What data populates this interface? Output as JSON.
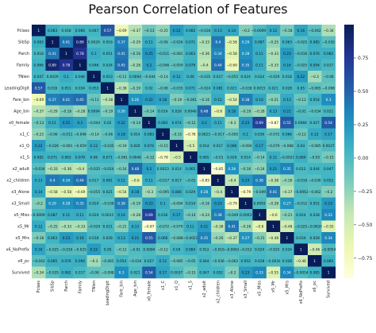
{
  "title": "Pearson Correlation of Features",
  "chart_data": {
    "type": "heatmap",
    "title": "Pearson Correlation of Features",
    "labels": [
      "Pclass",
      "SibSp",
      "Parch",
      "Family",
      "TNlen",
      "LeadingDigit",
      "Fare_bin",
      "Age_bin",
      "x0_female",
      "x1_C",
      "x1_Q",
      "x1_S",
      "x2_adult",
      "x2_children",
      "x3_Alone",
      "x3_Small",
      "x5_Miss",
      "x5_Mr",
      "x5_Mrs",
      "x6_NoPrefix",
      "x6_pc",
      "Survived"
    ],
    "colormap": "YlGnBu",
    "vmin": -0.9,
    "vmax": 1.0,
    "colorbar_ticks": [
      0.75,
      0.5,
      0.25,
      0.0,
      -0.25,
      -0.5,
      -0.75
    ],
    "colorbar_tick_labels": [
      "0.75",
      "0.50",
      "0.25",
      "0.00",
      "−0.25",
      "−0.50",
      "−0.75"
    ],
    "matrix": [
      [
        1,
        0.083,
        0.018,
        0.066,
        0.047,
        0.57,
        -0.69,
        -0.37,
        -0.13,
        -0.25,
        0.22,
        0.082,
        -0.034,
        0.13,
        0.14,
        -0.2,
        -0.00091,
        0.12,
        -0.18,
        0.16,
        -0.042,
        -0.34
      ],
      [
        0.083,
        1,
        0.41,
        0.89,
        0.0029,
        0.016,
        0.37,
        -0.29,
        0.11,
        -0.06,
        -0.026,
        0.071,
        -0.33,
        0.4,
        -0.58,
        0.29,
        0.087,
        -0.25,
        0.063,
        -0.025,
        0.085,
        -0.035
      ],
      [
        0.018,
        0.41,
        1,
        0.78,
        0.1,
        0.051,
        0.41,
        -0.16,
        0.25,
        -0.011,
        -0.081,
        0.063,
        -0.36,
        0.34,
        -0.58,
        0.28,
        0.11,
        -0.33,
        0.23,
        -0.016,
        0.076,
        0.082
      ],
      [
        0.066,
        0.89,
        0.78,
        1,
        0.046,
        0.034,
        0.45,
        -0.28,
        0.2,
        -0.046,
        -0.059,
        0.079,
        -0.4,
        0.44,
        -0.69,
        0.35,
        0.11,
        -0.33,
        0.16,
        -0.025,
        0.094,
        0.017
      ],
      [
        0.047,
        0.0029,
        0.1,
        0.046,
        1,
        0.053,
        -0.11,
        0.0094,
        -0.044,
        -0.14,
        0.12,
        0.06,
        -0.035,
        0.017,
        -0.055,
        0.024,
        0.024,
        -0.029,
        0.018,
        0.22,
        -0.3,
        -0.06
      ],
      [
        0.57,
        0.016,
        0.051,
        0.034,
        0.053,
        1,
        -0.38,
        -0.19,
        0.02,
        -0.06,
        -0.035,
        0.071,
        -0.024,
        0.081,
        0.021,
        -0.038,
        0.0015,
        0.021,
        0.028,
        0.05,
        -0.065,
        -0.098
      ],
      [
        -0.69,
        0.37,
        0.41,
        0.45,
        -0.11,
        -0.38,
        1,
        0.26,
        0.22,
        0.18,
        -0.19,
        -0.061,
        -0.16,
        0.12,
        -0.54,
        0.38,
        0.14,
        -0.21,
        0.13,
        -0.12,
        0.054,
        0.3
      ],
      [
        -0.37,
        -0.29,
        -0.16,
        -0.28,
        0.0094,
        -0.19,
        0.26,
        1,
        -0.14,
        0.014,
        0.026,
        0.0046,
        0.48,
        -0.6,
        0.18,
        -0.19,
        -0.28,
        0.13,
        0.21,
        -0.01,
        -0.034,
        0.021
      ],
      [
        -0.13,
        0.11,
        0.25,
        0.2,
        -0.044,
        0.02,
        0.22,
        -0.14,
        1,
        0.083,
        0.074,
        -0.12,
        0.2,
        0.11,
        -0.3,
        0.23,
        0.69,
        -0.87,
        0.55,
        0.0084,
        0.027,
        0.54
      ],
      [
        -0.25,
        -0.06,
        -0.011,
        -0.046,
        -0.14,
        -0.06,
        0.18,
        0.014,
        0.083,
        1,
        -0.15,
        -0.78,
        0.0023,
        -0.017,
        -0.095,
        0.1,
        0.036,
        -0.072,
        0.066,
        -0.12,
        0.12,
        0.17
      ],
      [
        0.22,
        -0.026,
        -0.081,
        -0.059,
        0.12,
        -0.035,
        -0.19,
        0.026,
        0.074,
        -0.15,
        1,
        -0.5,
        0.014,
        0.017,
        0.086,
        -0.094,
        0.17,
        -0.079,
        -0.088,
        0.04,
        -0.085,
        0.0037
      ],
      [
        0.082,
        0.071,
        0.063,
        0.079,
        0.06,
        0.071,
        -0.061,
        0.0046,
        -0.12,
        -0.78,
        -0.5,
        1,
        0.065,
        -0.01,
        0.029,
        0.014,
        -0.14,
        0.11,
        -0.0021,
        0.084,
        -0.05,
        -0.15
      ],
      [
        -0.034,
        -0.33,
        -0.36,
        -0.4,
        -0.035,
        -0.024,
        -0.16,
        0.48,
        0.2,
        0.0023,
        0.014,
        0.065,
        1,
        -0.85,
        0.28,
        -0.16,
        -0.24,
        0.21,
        0.35,
        0.012,
        0.044,
        0.047
      ],
      [
        0.13,
        0.4,
        0.34,
        0.44,
        0.017,
        0.081,
        0.12,
        -0.6,
        0.11,
        -0.017,
        0.017,
        -0.01,
        -0.85,
        1,
        -0.4,
        0.23,
        0.38,
        -0.38,
        -0.26,
        -0.016,
        -0.036,
        0.052
      ],
      [
        0.14,
        -0.58,
        -0.58,
        -0.69,
        -0.055,
        0.021,
        -0.54,
        0.18,
        -0.3,
        -0.095,
        0.086,
        0.029,
        0.28,
        -0.4,
        1,
        -0.79,
        -0.049,
        0.41,
        -0.37,
        -0.0063,
        -0.062,
        -0.2
      ],
      [
        -0.2,
        0.29,
        0.28,
        0.35,
        0.024,
        -0.038,
        0.38,
        -0.19,
        0.23,
        0.1,
        -0.094,
        0.014,
        -0.16,
        0.23,
        -0.79,
        1,
        0.0093,
        -0.28,
        0.27,
        -0.012,
        0.052,
        0.23
      ],
      [
        -0.00091,
        0.087,
        0.11,
        0.11,
        0.024,
        0.0015,
        0.14,
        -0.28,
        0.69,
        0.036,
        0.17,
        -0.14,
        -0.24,
        0.38,
        -0.049,
        0.0093,
        1,
        -0.6,
        -0.21,
        0.024,
        0.028,
        0.33
      ],
      [
        0.12,
        -0.25,
        -0.33,
        -0.33,
        -0.029,
        0.021,
        -0.21,
        0.13,
        -0.87,
        -0.072,
        -0.079,
        0.11,
        0.21,
        -0.38,
        0.41,
        -0.28,
        -0.6,
        1,
        -0.48,
        -0.025,
        -0.0034,
        -0.55
      ],
      [
        -0.18,
        0.063,
        0.23,
        0.16,
        0.018,
        0.028,
        0.13,
        0.21,
        0.55,
        0.066,
        -0.088,
        -0.0021,
        0.35,
        -0.26,
        -0.37,
        0.27,
        -0.21,
        -0.48,
        1,
        0.034,
        0.028,
        0.34
      ],
      [
        0.16,
        -0.025,
        -0.016,
        -0.025,
        0.22,
        0.05,
        -0.12,
        -0.01,
        0.0084,
        -0.12,
        0.04,
        0.084,
        0.012,
        -0.016,
        -0.0063,
        -0.012,
        0.024,
        -0.025,
        0.034,
        1,
        -0.46,
        -0.0054
      ],
      [
        -0.042,
        0.085,
        0.076,
        0.094,
        -0.3,
        -0.065,
        0.054,
        -0.034,
        0.027,
        0.12,
        -0.085,
        -0.05,
        0.044,
        -0.036,
        -0.062,
        0.052,
        0.028,
        -0.0034,
        0.028,
        -0.46,
        1,
        0.085
      ],
      [
        -0.34,
        -0.035,
        0.082,
        0.017,
        -0.06,
        -0.098,
        0.3,
        0.021,
        0.54,
        0.17,
        0.0037,
        -0.15,
        0.047,
        0.052,
        -0.2,
        0.23,
        0.33,
        -0.55,
        0.34,
        -0.0054,
        0.085,
        1
      ]
    ]
  }
}
